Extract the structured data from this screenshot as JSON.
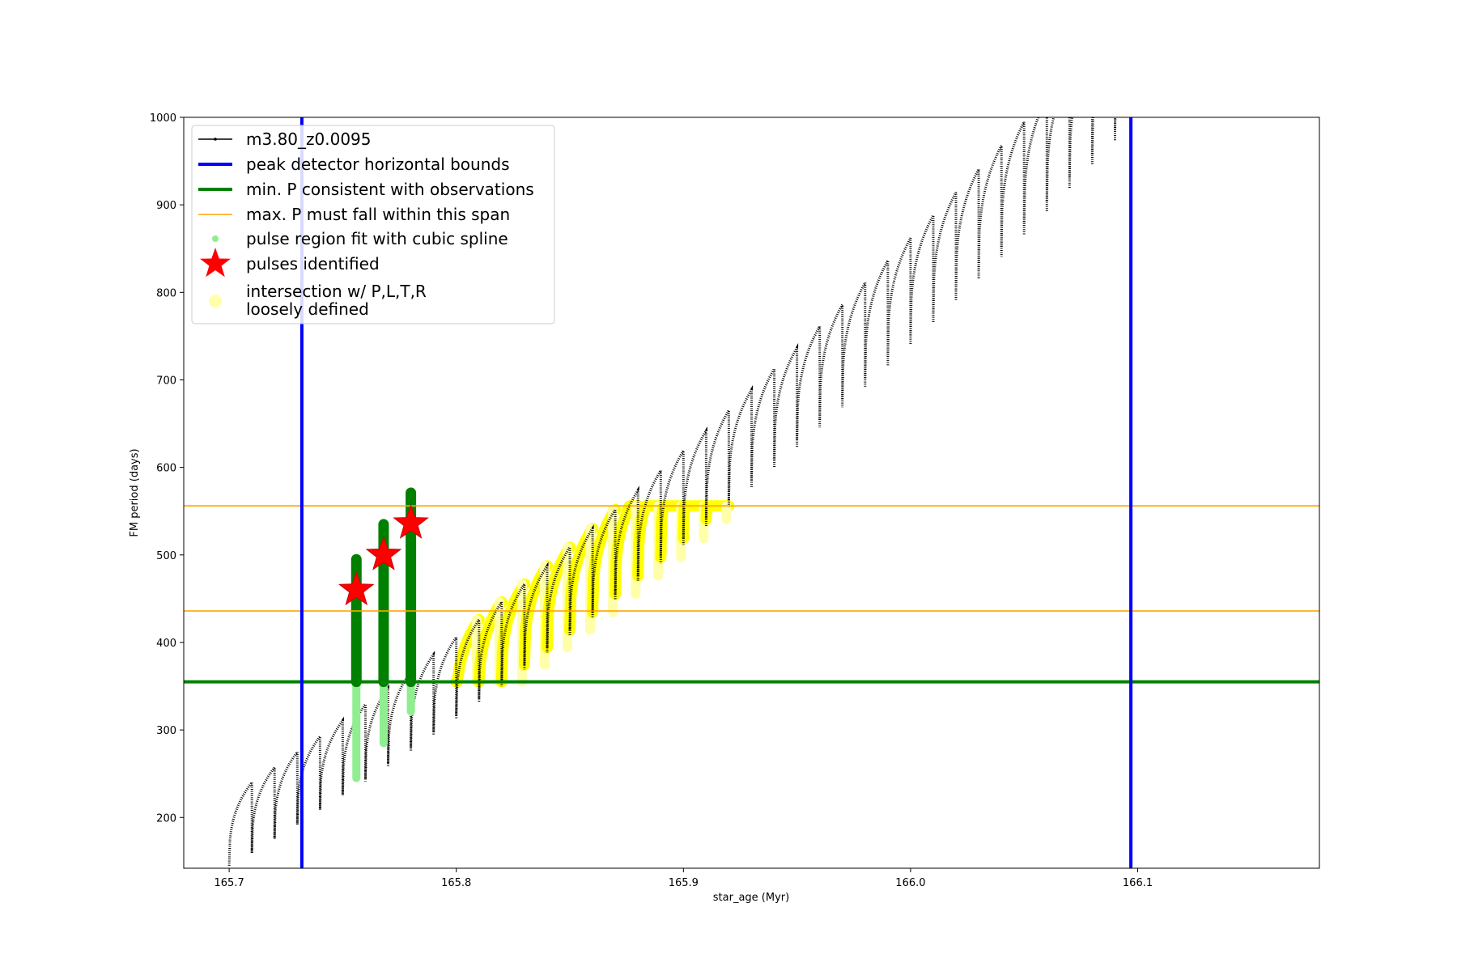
{
  "chart_data": {
    "type": "line",
    "title": "",
    "xlabel": "star_age (Myr)",
    "ylabel": "FM period (days)",
    "xlim": [
      165.68,
      166.18
    ],
    "ylim": [
      142,
      1000
    ],
    "x_ticks": [
      165.7,
      165.8,
      165.9,
      166.0,
      166.1
    ],
    "x_tick_labels": [
      "165.7",
      "165.8",
      "165.9",
      "166.0",
      "166.1"
    ],
    "y_ticks": [
      200,
      300,
      400,
      500,
      600,
      700,
      800,
      900,
      1000
    ],
    "y_tick_labels": [
      "200",
      "300",
      "400",
      "500",
      "600",
      "700",
      "800",
      "900",
      "1000"
    ],
    "grid": false,
    "legend_position": "upper-left",
    "colors": {
      "model": "#000000",
      "bounds": "#0000ff",
      "min_p": "#008000",
      "max_p": "#ffa500",
      "spline": "#90ee90",
      "spline_dark": "#008000",
      "pulses": "#ff0000",
      "intersection": "#ffff00",
      "intersection_faint": "#ffffaa"
    },
    "legend": [
      {
        "label": "m3.80_z0.0095",
        "key": "model"
      },
      {
        "label": "peak detector horizontal bounds",
        "key": "bounds"
      },
      {
        "label": "min. P consistent with observations",
        "key": "min_p"
      },
      {
        "label": "max. P must fall within this span",
        "key": "max_p"
      },
      {
        "label": "pulse region fit with cubic spline",
        "key": "spline"
      },
      {
        "label": "pulses identified",
        "key": "pulses"
      },
      {
        "label": "intersection w/ P,L,T,R\nloosely defined",
        "key": "intersection"
      }
    ],
    "vertical_lines": [
      165.732,
      166.097
    ],
    "min_p_line": 355,
    "max_p_span": [
      436,
      556
    ],
    "pulse_cycles": {
      "x_start": 165.7,
      "x_step": 0.01,
      "count": 46,
      "base_start": 145,
      "base_slope_per_myr": 1570,
      "base_curve": 1500,
      "amp_start": 95,
      "amp_slope_per_myr": 140,
      "spike_start": 200,
      "spike_slope_per_myr": 2100
    },
    "pulses_identified": [
      {
        "x": 165.756,
        "y": 460
      },
      {
        "x": 165.768,
        "y": 500
      },
      {
        "x": 165.78,
        "y": 536
      }
    ],
    "series": [
      {
        "name": "m3.80_z0.0095"
      },
      {
        "name": "pulses identified"
      }
    ]
  }
}
